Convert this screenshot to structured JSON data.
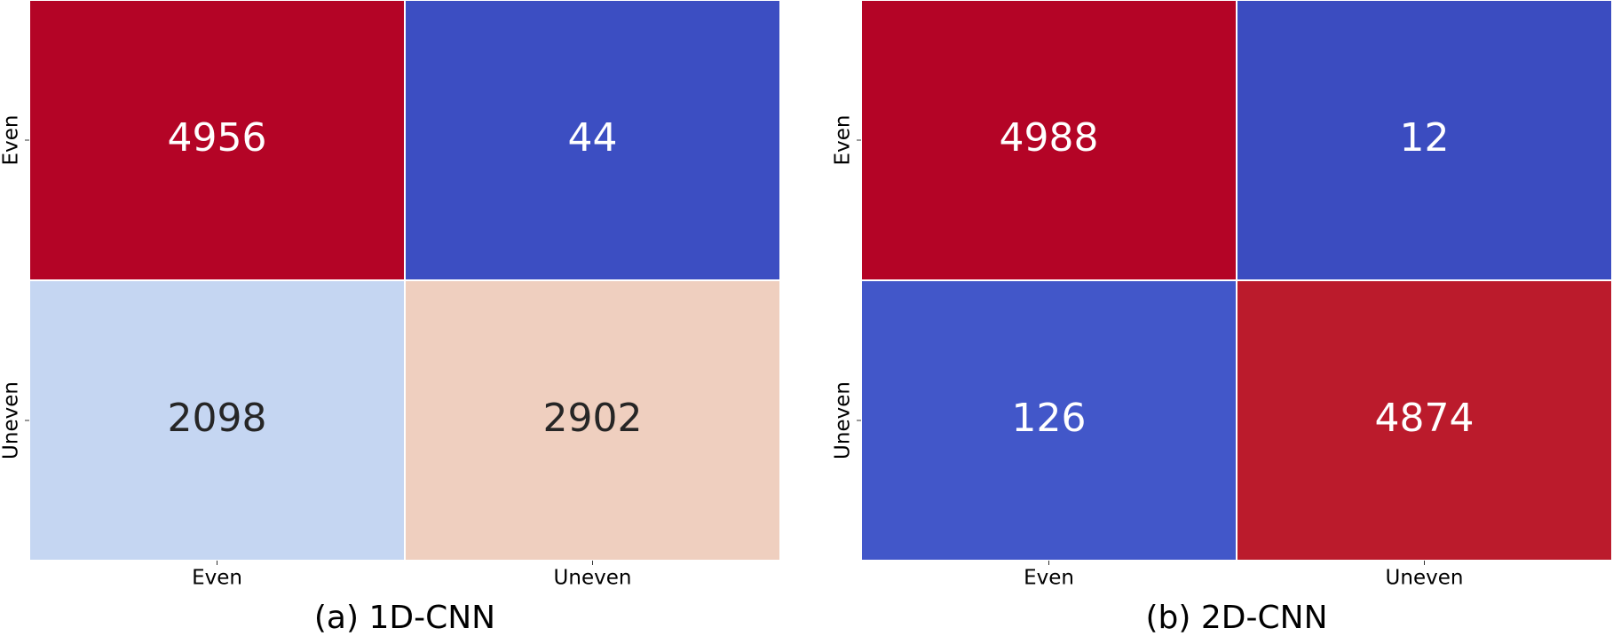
{
  "chart_data": [
    {
      "type": "heatmap",
      "title": "(a) 1D-CNN",
      "x_categories": [
        "Even",
        "Uneven"
      ],
      "y_categories": [
        "Even",
        "Uneven"
      ],
      "values": [
        [
          4956,
          44
        ],
        [
          2098,
          2902
        ]
      ],
      "colors": [
        [
          "#b40426",
          "#3c4ec2"
        ],
        [
          "#c5d6f2",
          "#efcfbf"
        ]
      ]
    },
    {
      "type": "heatmap",
      "title": "(b) 2D-CNN",
      "x_categories": [
        "Even",
        "Uneven"
      ],
      "y_categories": [
        "Even",
        "Uneven"
      ],
      "values": [
        [
          4988,
          12
        ],
        [
          126,
          4874
        ]
      ],
      "colors": [
        [
          "#b40426",
          "#3b4cc0"
        ],
        [
          "#4257c9",
          "#bb1b2c"
        ]
      ]
    }
  ]
}
